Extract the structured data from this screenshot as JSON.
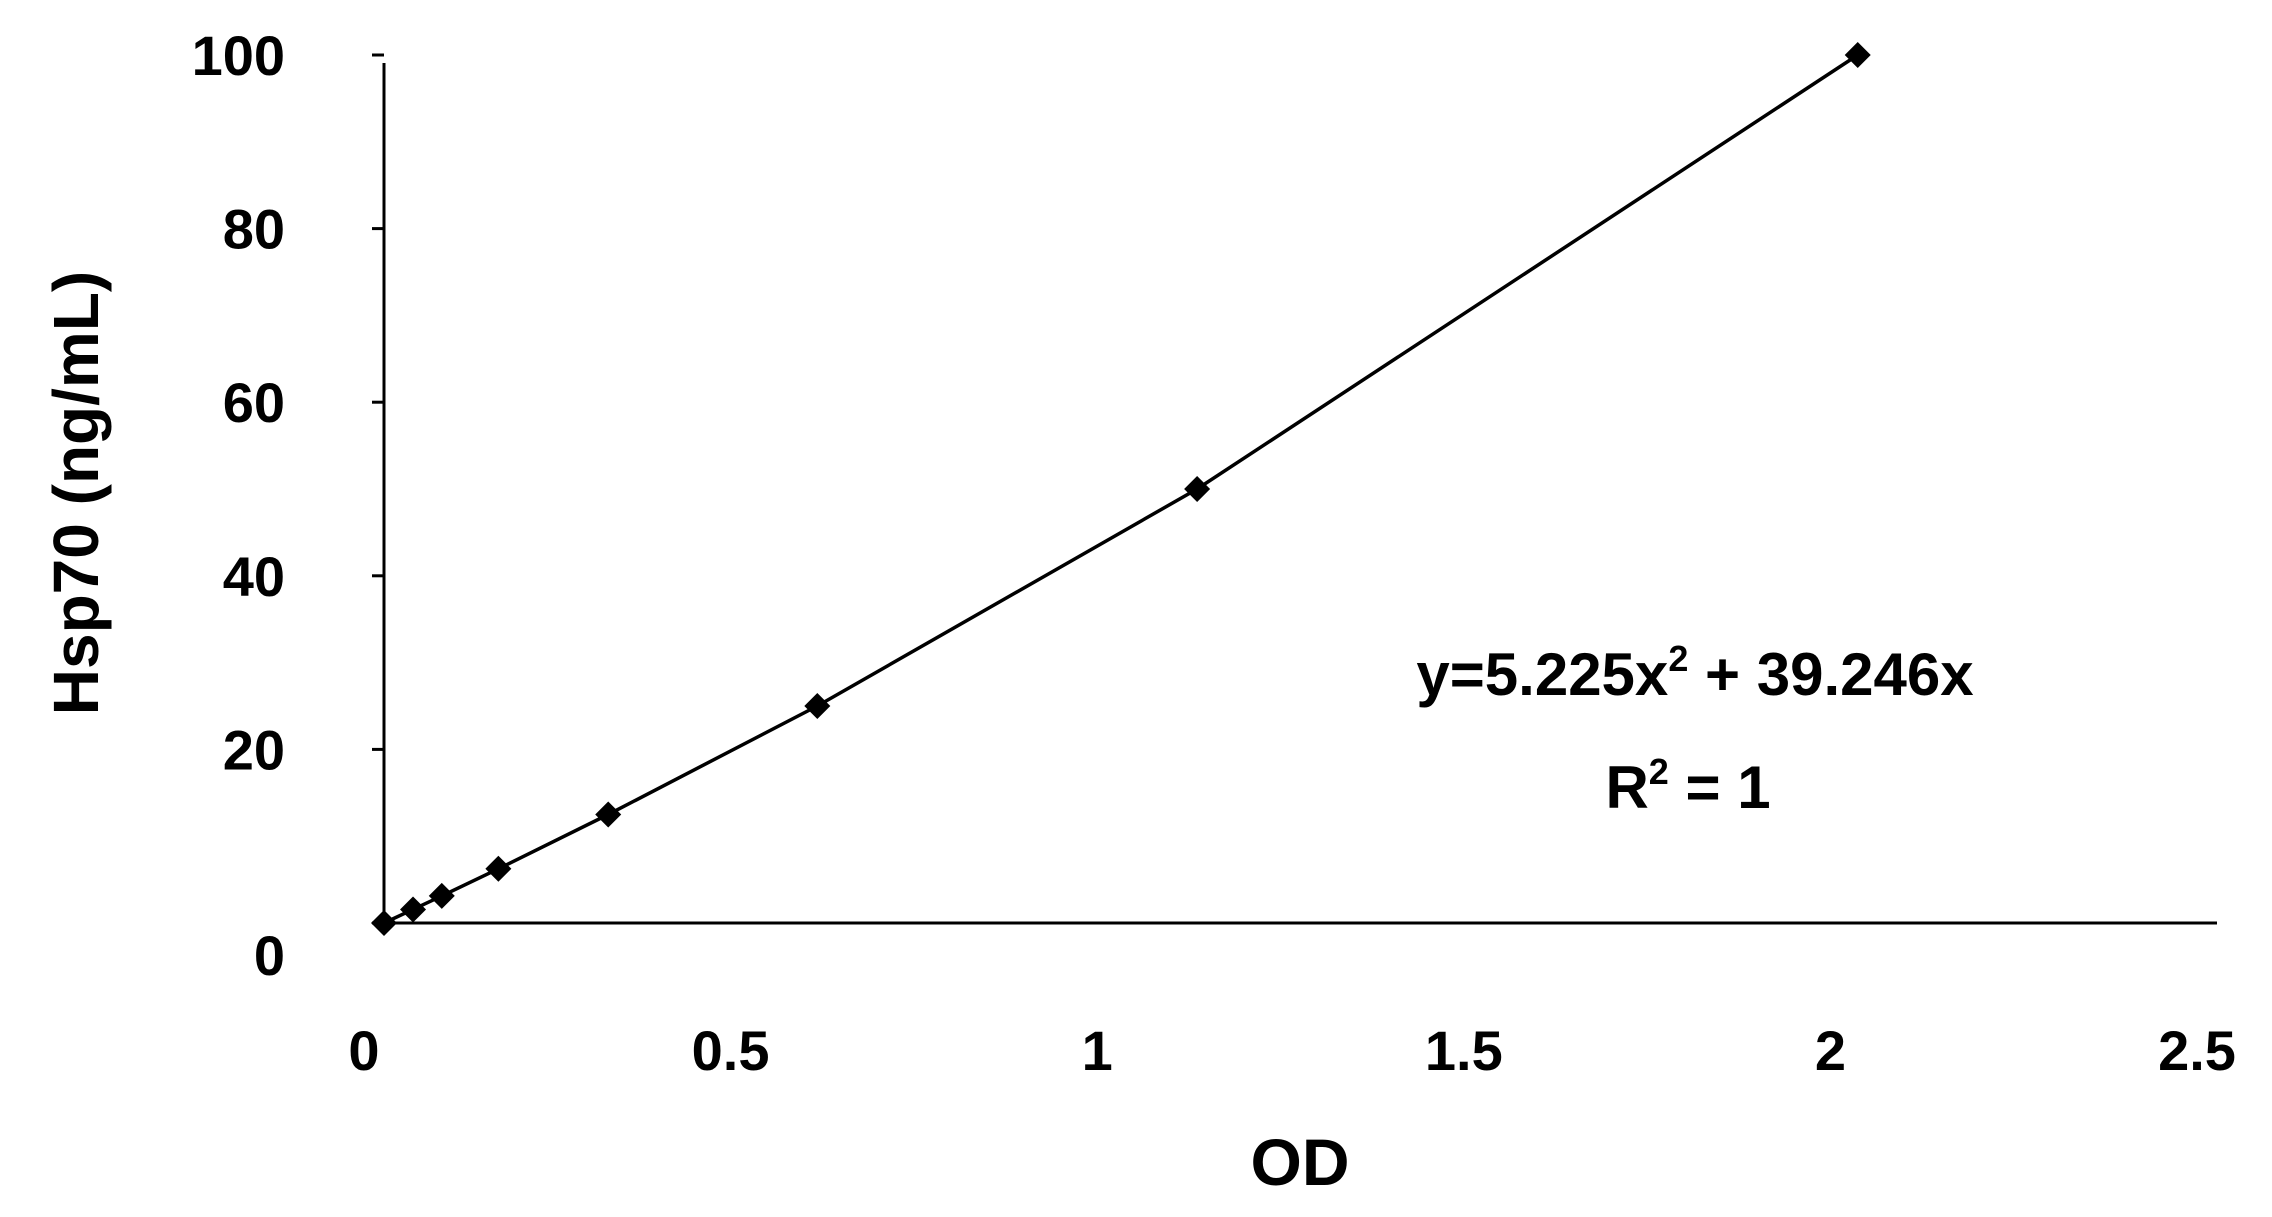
{
  "chart_data": {
    "type": "scatter",
    "x_label": "OD",
    "y_label": "Hsp70  (ng/mL)",
    "x": [
      0,
      0.0396,
      0.0788,
      0.156,
      0.3058,
      0.591,
      1.109,
      2.01
    ],
    "series": [
      {
        "color": "#000000",
        "values": [
          0,
          1.5625,
          3.125,
          6.25,
          12.5,
          25,
          50,
          100
        ]
      }
    ],
    "xlim": [
      0,
      2.5
    ],
    "xticks": [
      0,
      0.5,
      1,
      1.5,
      2,
      2.5
    ],
    "ylim": [
      0,
      100
    ],
    "yticks": [
      0,
      20,
      40,
      60,
      80,
      100
    ],
    "trendline": true,
    "annotations": {
      "equation": [
        "y=5.225x",
        "2",
        " + 39.246x"
      ],
      "r_squared": [
        "R",
        "2",
        " = 1"
      ]
    }
  }
}
